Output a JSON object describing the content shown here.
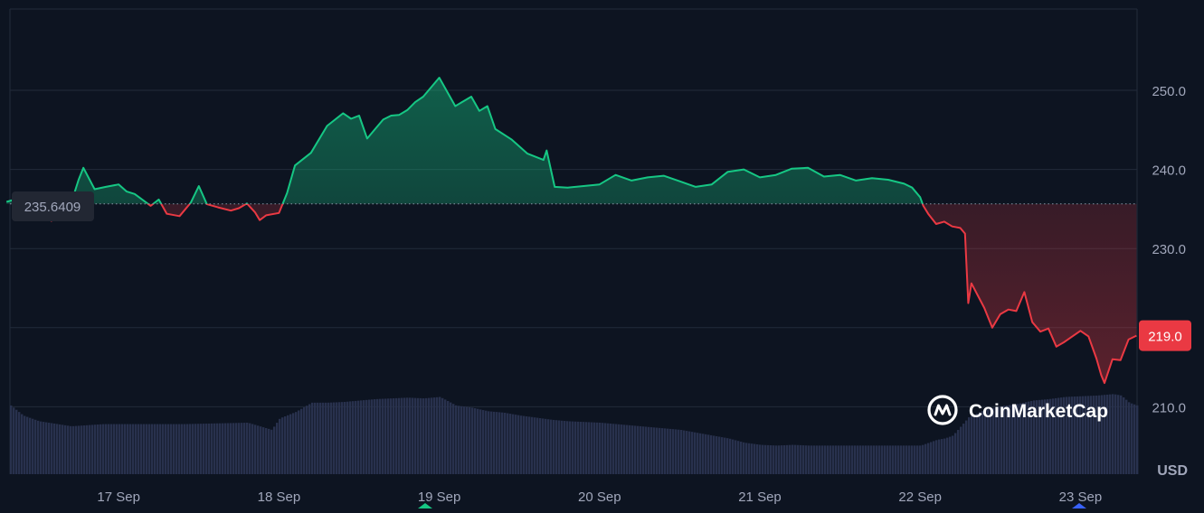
{
  "chart_data": {
    "type": "area",
    "baseline": 235.6409,
    "baseline_label": "235.6409",
    "current_value": 219.0,
    "current_label": "219.0",
    "currency_label": "USD",
    "watermark": "CoinMarketCap",
    "x_ticks": [
      "17 Sep",
      "18 Sep",
      "19 Sep",
      "20 Sep",
      "21 Sep",
      "22 Sep",
      "23 Sep"
    ],
    "y_ticks": [
      {
        "value": 250,
        "label": "250.0"
      },
      {
        "value": 240,
        "label": "240.0"
      },
      {
        "value": 230,
        "label": "230.0"
      },
      {
        "value": 210,
        "label": "210.0"
      }
    ],
    "ylim": [
      205.8,
      265.0
    ],
    "xlim": [
      16.3,
      23.35
    ],
    "grid": true,
    "colors": {
      "up": "#16c784",
      "down": "#ea3943",
      "background": "#0d1421",
      "grid": "#222b3a",
      "volume": "#2a3350"
    },
    "price": {
      "x": [
        16.3,
        16.4,
        16.5,
        16.58,
        16.65,
        16.7,
        16.75,
        16.78,
        16.85,
        16.92,
        17.0,
        17.05,
        17.1,
        17.2,
        17.25,
        17.3,
        17.38,
        17.45,
        17.5,
        17.55,
        17.62,
        17.7,
        17.75,
        17.8,
        17.85,
        17.88,
        17.92,
        18.0,
        18.05,
        18.1,
        18.2,
        18.3,
        18.4,
        18.45,
        18.5,
        18.55,
        18.6,
        18.65,
        18.7,
        18.75,
        18.8,
        18.85,
        18.9,
        19.0,
        19.1,
        19.2,
        19.25,
        19.3,
        19.35,
        19.45,
        19.55,
        19.65,
        19.67,
        19.72,
        19.8,
        19.9,
        20.0,
        20.1,
        20.2,
        20.3,
        20.4,
        20.5,
        20.6,
        20.7,
        20.8,
        20.9,
        21.0,
        21.1,
        21.2,
        21.3,
        21.4,
        21.5,
        21.6,
        21.7,
        21.8,
        21.9,
        21.95,
        22.0,
        22.02,
        22.05,
        22.1,
        22.15,
        22.2,
        22.25,
        22.28,
        22.3,
        22.32,
        22.4,
        22.45,
        22.5,
        22.55,
        22.6,
        22.65,
        22.7,
        22.75,
        22.8,
        22.85,
        22.9,
        22.95,
        23.0,
        23.05,
        23.1,
        23.13,
        23.15,
        23.2,
        23.25,
        23.3,
        23.35
      ],
      "y": [
        235.9,
        236.5,
        236.0,
        233.5,
        234.7,
        235.5,
        238.7,
        240.2,
        237.5,
        237.8,
        238.1,
        237.2,
        236.9,
        235.4,
        236.2,
        234.4,
        234.1,
        235.8,
        237.9,
        235.6,
        235.2,
        234.8,
        235.1,
        235.7,
        234.6,
        233.6,
        234.2,
        234.5,
        237.0,
        240.5,
        242.1,
        245.5,
        247.1,
        246.4,
        246.8,
        243.9,
        245.1,
        246.3,
        246.8,
        246.9,
        247.5,
        248.5,
        249.2,
        251.6,
        248.0,
        249.2,
        247.4,
        248.0,
        245.1,
        243.8,
        242.0,
        241.2,
        242.4,
        237.8,
        237.7,
        237.9,
        238.1,
        239.3,
        238.6,
        239.0,
        239.2,
        238.5,
        237.8,
        238.1,
        239.7,
        240.0,
        239.0,
        239.3,
        240.1,
        240.2,
        239.1,
        239.3,
        238.6,
        238.9,
        238.7,
        238.2,
        237.7,
        236.5,
        235.4,
        234.4,
        233.1,
        233.4,
        232.8,
        232.6,
        231.9,
        223.1,
        225.6,
        222.5,
        220.0,
        221.7,
        222.3,
        222.1,
        224.5,
        220.7,
        219.5,
        219.9,
        217.6,
        218.2,
        218.9,
        219.6,
        218.9,
        216.1,
        214.0,
        213.0,
        216.0,
        215.9,
        218.5,
        219.0
      ]
    },
    "volume": {
      "x": [
        16.3,
        16.4,
        16.5,
        16.7,
        16.9,
        17.0,
        17.2,
        17.4,
        17.6,
        17.8,
        17.95,
        18.0,
        18.1,
        18.2,
        18.3,
        18.4,
        18.5,
        18.6,
        18.7,
        18.8,
        18.9,
        19.0,
        19.1,
        19.2,
        19.3,
        19.4,
        19.5,
        19.6,
        19.7,
        19.8,
        19.9,
        20.0,
        20.1,
        20.2,
        20.3,
        20.4,
        20.5,
        20.6,
        20.7,
        20.8,
        20.9,
        21.0,
        21.1,
        21.2,
        21.3,
        21.4,
        21.5,
        21.6,
        21.7,
        21.8,
        21.9,
        22.0,
        22.05,
        22.1,
        22.15,
        22.2,
        22.3,
        22.4,
        22.5,
        22.6,
        22.7,
        22.8,
        22.9,
        23.0,
        23.1,
        23.15,
        23.2,
        23.25,
        23.3,
        23.35
      ],
      "y": [
        100,
        82,
        74,
        67,
        70,
        70,
        70,
        70,
        71,
        72,
        62,
        78,
        87,
        100,
        100,
        101,
        103,
        105,
        106,
        107,
        106,
        108,
        96,
        93,
        88,
        86,
        82,
        79,
        76,
        74,
        73,
        72,
        70,
        68,
        66,
        64,
        62,
        58,
        54,
        50,
        44,
        41,
        40,
        41,
        40,
        40,
        40,
        40,
        40,
        40,
        40,
        40,
        44,
        48,
        50,
        54,
        80,
        90,
        95,
        98,
        103,
        105,
        108,
        109,
        110,
        111,
        112,
        110,
        100,
        96
      ]
    }
  }
}
